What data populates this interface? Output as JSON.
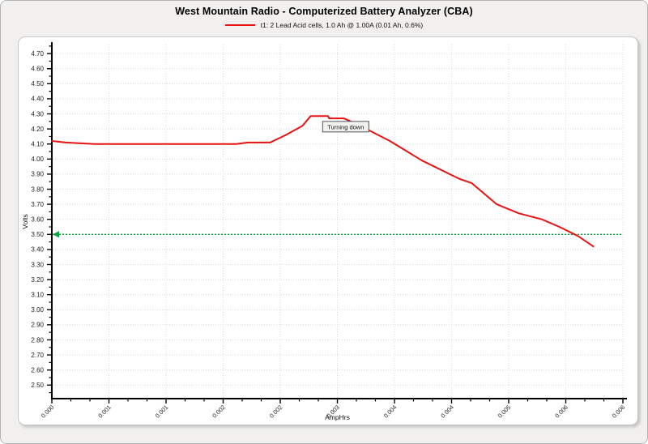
{
  "header": {
    "title": "West Mountain Radio - Computerized Battery Analyzer (CBA)"
  },
  "legend": {
    "label": "t1: 2 Lead Acid cells, 1.0 Ah @ 1.00A (0.01 Ah, 0.6%)",
    "color": "#e81212"
  },
  "chart_data": {
    "type": "line",
    "title": "West Mountain Radio - Computerized Battery Analyzer (CBA)",
    "xlabel": "AmpHrs",
    "ylabel": "Volts",
    "xlim": [
      0,
      0.0062
    ],
    "ylim": [
      2.41,
      4.76
    ],
    "grid": true,
    "legend_position": "top",
    "x_ticks": [
      {
        "v": 0.0,
        "label": "0.000"
      },
      {
        "v": 0.00062,
        "label": "0.001"
      },
      {
        "v": 0.00124,
        "label": "0.001"
      },
      {
        "v": 0.00186,
        "label": "0.002"
      },
      {
        "v": 0.00248,
        "label": "0.002"
      },
      {
        "v": 0.0031,
        "label": "0.003"
      },
      {
        "v": 0.00372,
        "label": "0.004"
      },
      {
        "v": 0.00434,
        "label": "0.004"
      },
      {
        "v": 0.00496,
        "label": "0.005"
      },
      {
        "v": 0.00558,
        "label": "0.006"
      },
      {
        "v": 0.0062,
        "label": "0.006"
      }
    ],
    "x_minor_per_interval": 2,
    "y_tick_labels": [
      "2.50",
      "2.60",
      "2.70",
      "2.80",
      "2.90",
      "3.00",
      "3.10",
      "3.20",
      "3.30",
      "3.40",
      "3.50",
      "3.60",
      "3.70",
      "3.80",
      "3.90",
      "4.00",
      "4.10",
      "4.20",
      "4.30",
      "4.40",
      "4.50",
      "4.60",
      "4.70"
    ],
    "y_minor_step": 0.05,
    "cutoff_line": {
      "v": 3.5,
      "color": "#00a43c",
      "style": "dotted"
    },
    "series": [
      {
        "name": "t1: 2 Lead Acid cells, 1.0 Ah @ 1.00A (0.01 Ah, 0.6%)",
        "color": "#e81212",
        "points": [
          [
            0.0,
            4.12
          ],
          [
            0.00015,
            4.11
          ],
          [
            0.00046,
            4.1
          ],
          [
            0.002,
            4.1
          ],
          [
            0.00213,
            4.11
          ],
          [
            0.00237,
            4.11
          ],
          [
            0.00254,
            4.16
          ],
          [
            0.00272,
            4.22
          ],
          [
            0.00281,
            4.285
          ],
          [
            0.003,
            4.285
          ],
          [
            0.00301,
            4.27
          ],
          [
            0.00317,
            4.27
          ],
          [
            0.00332,
            4.23
          ],
          [
            0.00367,
            4.12
          ],
          [
            0.00402,
            3.99
          ],
          [
            0.00442,
            3.87
          ],
          [
            0.00456,
            3.84
          ],
          [
            0.00483,
            3.7
          ],
          [
            0.00507,
            3.64
          ],
          [
            0.00532,
            3.6
          ],
          [
            0.00551,
            3.55
          ],
          [
            0.00571,
            3.49
          ],
          [
            0.00588,
            3.42
          ]
        ]
      }
    ],
    "annotation": {
      "text": "Turning down",
      "x": 0.00294,
      "y": 4.25
    }
  }
}
